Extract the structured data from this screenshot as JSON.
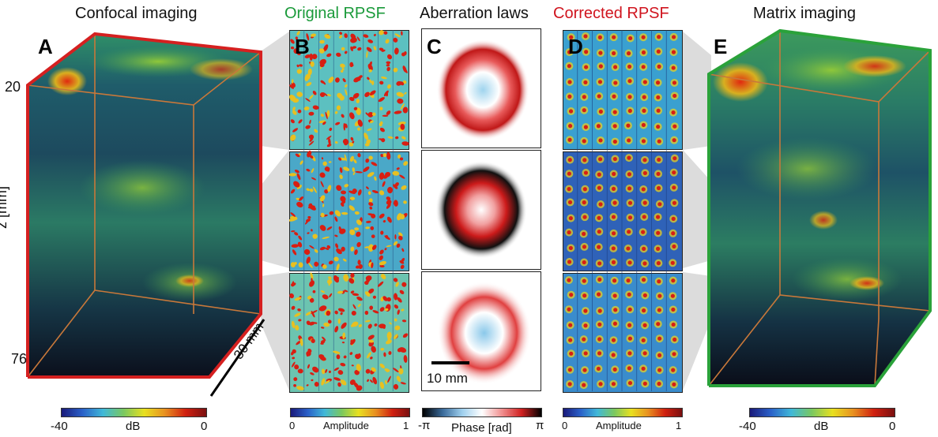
{
  "panels": {
    "A": {
      "letter": "A",
      "title": "Confocal imaging"
    },
    "B": {
      "letter": "B",
      "title": "Original RPSF"
    },
    "C": {
      "letter": "C",
      "title": "Aberration laws"
    },
    "D": {
      "letter": "D",
      "title": "Corrected RPSF"
    },
    "E": {
      "letter": "E",
      "title": "Matrix imaging"
    }
  },
  "axes": {
    "z_label": "z [mm]",
    "z_top": "20",
    "z_bottom": "76",
    "depth_label": "30 mm",
    "scale_bar": "10 mm"
  },
  "colorbars": {
    "A": {
      "min": "-40",
      "unit": "dB",
      "max": "0"
    },
    "B": {
      "min": "0",
      "unit": "Amplitude",
      "max": "1"
    },
    "C": {
      "min": "-π",
      "unit": "Phase [rad]",
      "max": "π"
    },
    "D": {
      "min": "0",
      "unit": "Amplitude",
      "max": "1"
    },
    "E": {
      "min": "-40",
      "unit": "dB",
      "max": "0"
    }
  },
  "colors": {
    "title_original": "#1a9a3a",
    "title_corrected": "#d0141e",
    "box_A": "#d52020",
    "box_E": "#2aa23a",
    "box_edges": "#c8783a"
  }
}
